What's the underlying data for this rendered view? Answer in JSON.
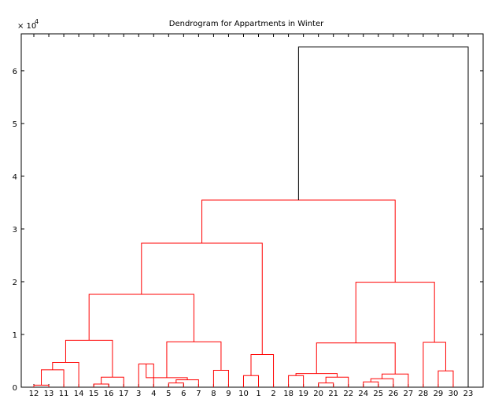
{
  "chart_data": {
    "type": "dendrogram",
    "title": "Dendrogram for Appartments in Winter",
    "xlabel": "",
    "ylabel": "",
    "y_scale_label": "× 10",
    "y_scale_exponent": "4",
    "ylim": [
      0,
      6.7
    ],
    "y_ticks": [
      0,
      1,
      2,
      3,
      4,
      5,
      6
    ],
    "y_tick_labels": [
      "0",
      "1",
      "2",
      "3",
      "4",
      "5",
      "6"
    ],
    "leaf_order": [
      "12",
      "13",
      "11",
      "14",
      "15",
      "16",
      "17",
      "3",
      "4",
      "5",
      "6",
      "7",
      "8",
      "9",
      "10",
      "1",
      "2",
      "18",
      "19",
      "20",
      "21",
      "22",
      "24",
      "25",
      "26",
      "27",
      "28",
      "29",
      "30",
      "23"
    ],
    "colors": {
      "cluster": "#ff0000",
      "root": "#000000"
    },
    "merges": [
      {
        "a": "12",
        "b": "13",
        "h": 0.04,
        "color": "cluster"
      },
      {
        "a": "m0",
        "b": "11",
        "h": 0.33,
        "color": "cluster"
      },
      {
        "a": "m1",
        "b": "14",
        "h": 0.47,
        "color": "cluster"
      },
      {
        "a": "15",
        "b": "16",
        "h": 0.06,
        "color": "cluster"
      },
      {
        "a": "m3",
        "b": "17",
        "h": 0.19,
        "color": "cluster"
      },
      {
        "a": "m2",
        "b": "m4",
        "h": 0.89,
        "color": "cluster"
      },
      {
        "a": "3",
        "b": "4",
        "h": 0.44,
        "color": "cluster"
      },
      {
        "a": "5",
        "b": "6",
        "h": 0.08,
        "color": "cluster"
      },
      {
        "a": "m7",
        "b": "7",
        "h": 0.14,
        "color": "cluster"
      },
      {
        "a": "m6",
        "b": "m8",
        "h": 0.18,
        "color": "cluster"
      },
      {
        "a": "8",
        "b": "9",
        "h": 0.32,
        "color": "cluster"
      },
      {
        "a": "m9",
        "b": "m10",
        "h": 0.86,
        "color": "cluster"
      },
      {
        "a": "m5",
        "b": "m11",
        "h": 1.76,
        "color": "cluster"
      },
      {
        "a": "10",
        "b": "1",
        "h": 0.22,
        "color": "cluster"
      },
      {
        "a": "m13",
        "b": "2",
        "h": 0.62,
        "color": "cluster"
      },
      {
        "a": "m12",
        "b": "m14",
        "h": 2.73,
        "color": "cluster"
      },
      {
        "a": "18",
        "b": "19",
        "h": 0.22,
        "color": "cluster"
      },
      {
        "a": "20",
        "b": "21",
        "h": 0.08,
        "color": "cluster"
      },
      {
        "a": "m17",
        "b": "22",
        "h": 0.19,
        "color": "cluster"
      },
      {
        "a": "m16",
        "b": "m18",
        "h": 0.26,
        "color": "cluster"
      },
      {
        "a": "24",
        "b": "25",
        "h": 0.1,
        "color": "cluster"
      },
      {
        "a": "m20",
        "b": "26",
        "h": 0.16,
        "color": "cluster"
      },
      {
        "a": "m21",
        "b": "27",
        "h": 0.25,
        "color": "cluster"
      },
      {
        "a": "m19",
        "b": "m22",
        "h": 0.84,
        "color": "cluster"
      },
      {
        "a": "29",
        "b": "30",
        "h": 0.31,
        "color": "cluster"
      },
      {
        "a": "28",
        "b": "m24",
        "h": 0.85,
        "color": "cluster"
      },
      {
        "a": "m23",
        "b": "m25",
        "h": 1.99,
        "color": "cluster"
      },
      {
        "a": "m15",
        "b": "m26",
        "h": 3.55,
        "color": "cluster"
      },
      {
        "a": "m27",
        "b": "23",
        "h": 6.45,
        "color": "root"
      }
    ]
  }
}
